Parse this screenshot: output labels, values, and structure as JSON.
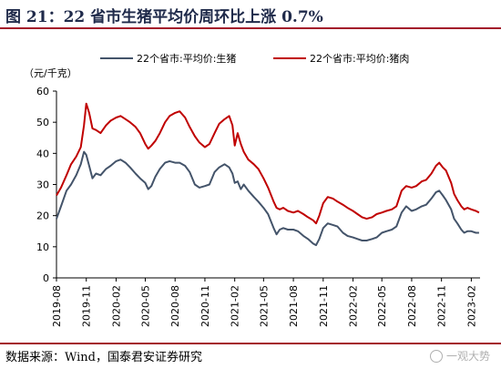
{
  "header": {
    "title": "图 21：22 省市生猪平均价周环比上涨 0.7%"
  },
  "footer": {
    "source": "数据来源：Wind，国泰君安证券研究",
    "watermark": "一观大势"
  },
  "colors": {
    "hog": "#44546a",
    "pork": "#c00000",
    "rule": "#a3192a"
  },
  "chart_data": {
    "type": "line",
    "title": "",
    "ylabel": "（元/千克）",
    "xlabel": "",
    "ylim": [
      0,
      60
    ],
    "yticks": [
      "0",
      "10",
      "20",
      "30",
      "40",
      "50",
      "60"
    ],
    "xticks": [
      "2019-08",
      "2019-11",
      "2020-02",
      "2020-05",
      "2020-08",
      "2020-11",
      "2021-02",
      "2021-05",
      "2021-08",
      "2021-11",
      "2022-02",
      "2022-05",
      "2022-08",
      "2022-11",
      "2023-02"
    ],
    "grid": false,
    "legend": "top",
    "x_range": [
      "2019-08-01",
      "2023-02-28"
    ],
    "series": [
      {
        "name": "22个省市:平均价:生猪",
        "color": "#44546a",
        "points": [
          [
            "2019-08-01",
            19.0
          ],
          [
            "2019-08-15",
            23.0
          ],
          [
            "2019-09-01",
            28.0
          ],
          [
            "2019-09-15",
            30.0
          ],
          [
            "2019-10-01",
            33.0
          ],
          [
            "2019-10-15",
            36.5
          ],
          [
            "2019-10-25",
            40.5
          ],
          [
            "2019-11-01",
            39.5
          ],
          [
            "2019-11-10",
            36.0
          ],
          [
            "2019-11-20",
            32.0
          ],
          [
            "2019-12-01",
            33.5
          ],
          [
            "2019-12-15",
            33.0
          ],
          [
            "2020-01-01",
            35.0
          ],
          [
            "2020-01-15",
            36.0
          ],
          [
            "2020-02-01",
            37.5
          ],
          [
            "2020-02-15",
            38.0
          ],
          [
            "2020-03-01",
            37.0
          ],
          [
            "2020-03-15",
            35.5
          ],
          [
            "2020-04-01",
            33.5
          ],
          [
            "2020-04-15",
            32.0
          ],
          [
            "2020-05-01",
            30.5
          ],
          [
            "2020-05-10",
            28.5
          ],
          [
            "2020-05-20",
            29.5
          ],
          [
            "2020-06-01",
            32.5
          ],
          [
            "2020-06-15",
            35.0
          ],
          [
            "2020-07-01",
            37.0
          ],
          [
            "2020-07-15",
            37.5
          ],
          [
            "2020-08-01",
            37.0
          ],
          [
            "2020-08-15",
            37.0
          ],
          [
            "2020-09-01",
            36.0
          ],
          [
            "2020-09-15",
            34.0
          ],
          [
            "2020-10-01",
            30.0
          ],
          [
            "2020-10-15",
            29.0
          ],
          [
            "2020-11-01",
            29.5
          ],
          [
            "2020-11-15",
            30.0
          ],
          [
            "2020-12-01",
            34.0
          ],
          [
            "2020-12-15",
            35.5
          ],
          [
            "2021-01-01",
            36.5
          ],
          [
            "2021-01-15",
            35.5
          ],
          [
            "2021-01-25",
            33.5
          ],
          [
            "2021-02-01",
            30.5
          ],
          [
            "2021-02-10",
            31.0
          ],
          [
            "2021-02-20",
            28.5
          ],
          [
            "2021-03-01",
            30.0
          ],
          [
            "2021-03-15",
            28.0
          ],
          [
            "2021-04-01",
            26.0
          ],
          [
            "2021-04-15",
            24.5
          ],
          [
            "2021-05-01",
            22.5
          ],
          [
            "2021-05-15",
            20.5
          ],
          [
            "2021-06-01",
            16.0
          ],
          [
            "2021-06-10",
            14.0
          ],
          [
            "2021-06-20",
            15.5
          ],
          [
            "2021-07-01",
            16.0
          ],
          [
            "2021-07-15",
            15.5
          ],
          [
            "2021-08-01",
            15.5
          ],
          [
            "2021-08-15",
            15.0
          ],
          [
            "2021-09-01",
            13.5
          ],
          [
            "2021-09-15",
            12.5
          ],
          [
            "2021-10-01",
            11.0
          ],
          [
            "2021-10-10",
            10.5
          ],
          [
            "2021-10-20",
            12.5
          ],
          [
            "2021-11-01",
            16.0
          ],
          [
            "2021-11-15",
            17.5
          ],
          [
            "2021-12-01",
            17.0
          ],
          [
            "2021-12-15",
            16.5
          ],
          [
            "2022-01-01",
            14.5
          ],
          [
            "2022-01-15",
            13.5
          ],
          [
            "2022-02-01",
            13.0
          ],
          [
            "2022-02-15",
            12.5
          ],
          [
            "2022-03-01",
            12.0
          ],
          [
            "2022-03-15",
            12.0
          ],
          [
            "2022-04-01",
            12.5
          ],
          [
            "2022-04-15",
            13.0
          ],
          [
            "2022-05-01",
            14.5
          ],
          [
            "2022-05-15",
            15.0
          ],
          [
            "2022-06-01",
            15.5
          ],
          [
            "2022-06-15",
            16.5
          ],
          [
            "2022-07-01",
            21.0
          ],
          [
            "2022-07-15",
            23.0
          ],
          [
            "2022-08-01",
            21.5
          ],
          [
            "2022-08-15",
            22.0
          ],
          [
            "2022-09-01",
            23.0
          ],
          [
            "2022-09-15",
            23.5
          ],
          [
            "2022-10-01",
            25.5
          ],
          [
            "2022-10-15",
            27.5
          ],
          [
            "2022-10-25",
            28.0
          ],
          [
            "2022-11-05",
            26.5
          ],
          [
            "2022-11-15",
            25.0
          ],
          [
            "2022-12-01",
            22.0
          ],
          [
            "2022-12-10",
            19.0
          ],
          [
            "2022-12-20",
            17.5
          ],
          [
            "2023-01-01",
            15.5
          ],
          [
            "2023-01-10",
            14.5
          ],
          [
            "2023-01-20",
            15.0
          ],
          [
            "2023-02-01",
            15.0
          ],
          [
            "2023-02-15",
            14.5
          ],
          [
            "2023-02-25",
            14.5
          ]
        ]
      },
      {
        "name": "22个省市:平均价:猪肉",
        "color": "#c00000",
        "points": [
          [
            "2019-08-01",
            26.5
          ],
          [
            "2019-08-15",
            29.0
          ],
          [
            "2019-09-01",
            33.0
          ],
          [
            "2019-09-15",
            36.5
          ],
          [
            "2019-10-01",
            39.0
          ],
          [
            "2019-10-15",
            42.0
          ],
          [
            "2019-10-25",
            49.0
          ],
          [
            "2019-11-01",
            56.0
          ],
          [
            "2019-11-10",
            53.0
          ],
          [
            "2019-11-20",
            48.0
          ],
          [
            "2019-12-01",
            47.5
          ],
          [
            "2019-12-15",
            46.5
          ],
          [
            "2020-01-01",
            49.0
          ],
          [
            "2020-01-15",
            50.5
          ],
          [
            "2020-02-01",
            51.5
          ],
          [
            "2020-02-15",
            52.0
          ],
          [
            "2020-03-01",
            51.0
          ],
          [
            "2020-03-15",
            50.0
          ],
          [
            "2020-04-01",
            48.5
          ],
          [
            "2020-04-15",
            46.5
          ],
          [
            "2020-05-01",
            43.0
          ],
          [
            "2020-05-10",
            41.5
          ],
          [
            "2020-05-20",
            42.5
          ],
          [
            "2020-06-01",
            44.0
          ],
          [
            "2020-06-15",
            46.5
          ],
          [
            "2020-07-01",
            50.0
          ],
          [
            "2020-07-15",
            52.0
          ],
          [
            "2020-08-01",
            53.0
          ],
          [
            "2020-08-15",
            53.5
          ],
          [
            "2020-09-01",
            51.5
          ],
          [
            "2020-09-15",
            48.5
          ],
          [
            "2020-10-01",
            45.5
          ],
          [
            "2020-10-15",
            43.5
          ],
          [
            "2020-11-01",
            42.0
          ],
          [
            "2020-11-15",
            43.0
          ],
          [
            "2020-12-01",
            46.5
          ],
          [
            "2020-12-15",
            49.5
          ],
          [
            "2021-01-01",
            51.0
          ],
          [
            "2021-01-15",
            52.0
          ],
          [
            "2021-01-25",
            49.0
          ],
          [
            "2021-02-01",
            42.5
          ],
          [
            "2021-02-10",
            46.5
          ],
          [
            "2021-02-20",
            43.0
          ],
          [
            "2021-03-01",
            40.5
          ],
          [
            "2021-03-15",
            38.0
          ],
          [
            "2021-04-01",
            36.5
          ],
          [
            "2021-04-15",
            35.0
          ],
          [
            "2021-05-01",
            32.0
          ],
          [
            "2021-05-15",
            29.0
          ],
          [
            "2021-06-01",
            24.5
          ],
          [
            "2021-06-10",
            22.5
          ],
          [
            "2021-06-20",
            22.0
          ],
          [
            "2021-07-01",
            22.5
          ],
          [
            "2021-07-15",
            21.5
          ],
          [
            "2021-08-01",
            21.0
          ],
          [
            "2021-08-15",
            21.5
          ],
          [
            "2021-09-01",
            20.5
          ],
          [
            "2021-09-15",
            19.5
          ],
          [
            "2021-10-01",
            18.5
          ],
          [
            "2021-10-10",
            17.5
          ],
          [
            "2021-10-20",
            20.0
          ],
          [
            "2021-11-01",
            24.0
          ],
          [
            "2021-11-15",
            26.0
          ],
          [
            "2021-12-01",
            25.5
          ],
          [
            "2021-12-15",
            24.5
          ],
          [
            "2022-01-01",
            23.5
          ],
          [
            "2022-01-15",
            22.5
          ],
          [
            "2022-02-01",
            21.5
          ],
          [
            "2022-02-15",
            20.5
          ],
          [
            "2022-03-01",
            19.5
          ],
          [
            "2022-03-15",
            19.0
          ],
          [
            "2022-04-01",
            19.5
          ],
          [
            "2022-04-15",
            20.5
          ],
          [
            "2022-05-01",
            21.0
          ],
          [
            "2022-05-15",
            21.5
          ],
          [
            "2022-06-01",
            22.0
          ],
          [
            "2022-06-15",
            23.0
          ],
          [
            "2022-07-01",
            28.0
          ],
          [
            "2022-07-15",
            29.5
          ],
          [
            "2022-08-01",
            29.0
          ],
          [
            "2022-08-15",
            29.5
          ],
          [
            "2022-09-01",
            31.0
          ],
          [
            "2022-09-15",
            31.5
          ],
          [
            "2022-10-01",
            33.5
          ],
          [
            "2022-10-15",
            36.0
          ],
          [
            "2022-10-25",
            37.0
          ],
          [
            "2022-11-05",
            35.5
          ],
          [
            "2022-11-15",
            34.5
          ],
          [
            "2022-12-01",
            30.5
          ],
          [
            "2022-12-10",
            27.0
          ],
          [
            "2022-12-20",
            25.0
          ],
          [
            "2023-01-01",
            23.0
          ],
          [
            "2023-01-10",
            22.0
          ],
          [
            "2023-01-20",
            22.5
          ],
          [
            "2023-02-01",
            22.0
          ],
          [
            "2023-02-15",
            21.5
          ],
          [
            "2023-02-25",
            21.0
          ]
        ]
      }
    ]
  }
}
